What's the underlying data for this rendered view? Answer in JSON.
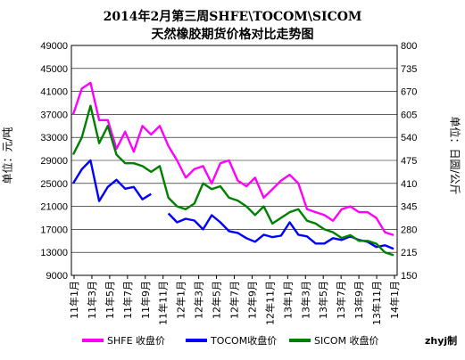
{
  "chart_data": {
    "type": "line",
    "title": "2014年2月第三周SHFE\\TOCOM\\SICOM",
    "subtitle": "天然橡胶期货价格对比走势图",
    "ylabel_left": "单位：元/吨",
    "ylabel_right": "单位：日圆/公斤",
    "ylim_left": [
      9000,
      49000
    ],
    "yticks_left": [
      "9000",
      "13000",
      "17000",
      "21000",
      "25000",
      "29000",
      "33000",
      "37000",
      "41000",
      "45000",
      "49000"
    ],
    "ylim_right": [
      150,
      800
    ],
    "yticks_right": [
      "150",
      "215",
      "280",
      "345",
      "410",
      "475",
      "540",
      "605",
      "670",
      "735",
      "800"
    ],
    "x_categories": [
      "11年1月",
      "11年3月",
      "11年5月",
      "11年7月",
      "11年9月",
      "11年11月",
      "12年1月",
      "12年3月",
      "12年5月",
      "12年7月",
      "12年9月",
      "12年11月",
      "13年1月",
      "13年3月",
      "13年5月",
      "13年7月",
      "13年9月",
      "13年11月",
      "14年1月"
    ],
    "grid": true,
    "legend_position": "bottom",
    "series": [
      {
        "name": "SHFE 收盘价",
        "color": "#ff00ff",
        "axis": "left",
        "x": [
          0,
          1,
          2,
          3,
          4,
          5,
          6,
          7,
          8,
          9,
          10,
          11,
          12,
          13,
          14,
          15,
          16,
          17,
          18,
          19,
          20,
          21,
          22,
          23,
          24,
          25,
          26,
          27,
          28,
          29,
          30,
          31,
          32,
          33,
          34,
          35,
          36,
          37
        ],
        "values": [
          37000,
          41500,
          42500,
          36000,
          36000,
          31000,
          34000,
          30500,
          35000,
          33500,
          35000,
          31500,
          29000,
          26000,
          27500,
          28000,
          25000,
          28500,
          29000,
          25500,
          24500,
          26000,
          22500,
          24000,
          25500,
          26500,
          25000,
          20500,
          20000,
          19500,
          18500,
          20500,
          21000,
          20000,
          20000,
          19000,
          16500,
          16000
        ]
      },
      {
        "name": "TOCOM收盘价",
        "color": "#0000ff",
        "axis": "right",
        "x": [
          0,
          1,
          2,
          3,
          4,
          5,
          6,
          7,
          8,
          9,
          10,
          11,
          12,
          13,
          14,
          15,
          16,
          17,
          18,
          19,
          20,
          21,
          22,
          23,
          24,
          25,
          26,
          27,
          28,
          29,
          30,
          31,
          32,
          33,
          34,
          35,
          36,
          37
        ],
        "values": [
          410,
          450,
          475,
          360,
          400,
          420,
          395,
          400,
          365,
          380,
          null,
          325,
          300,
          310,
          305,
          280,
          320,
          300,
          275,
          270,
          255,
          245,
          265,
          258,
          262,
          300,
          265,
          260,
          240,
          240,
          255,
          250,
          260,
          250,
          245,
          230,
          235,
          225
        ]
      },
      {
        "name": "SICOM 收盘价",
        "color": "#008000",
        "axis": "left",
        "x": [
          0,
          1,
          2,
          3,
          4,
          5,
          6,
          7,
          8,
          9,
          10,
          11,
          12,
          13,
          14,
          15,
          16,
          17,
          18,
          19,
          20,
          21,
          22,
          23,
          24,
          25,
          26,
          27,
          28,
          29,
          30,
          31,
          32,
          33,
          34,
          35,
          36,
          37
        ],
        "values": [
          30000,
          33000,
          38500,
          32000,
          35000,
          30000,
          28500,
          28500,
          28000,
          27000,
          28000,
          22500,
          21000,
          20500,
          21500,
          25000,
          24000,
          24500,
          22500,
          22000,
          21000,
          19500,
          21000,
          18000,
          19000,
          20000,
          20500,
          18500,
          18000,
          17000,
          16500,
          15500,
          16000,
          15000,
          15000,
          14500,
          13000,
          12500
        ]
      }
    ]
  },
  "credit": "zhyj制"
}
